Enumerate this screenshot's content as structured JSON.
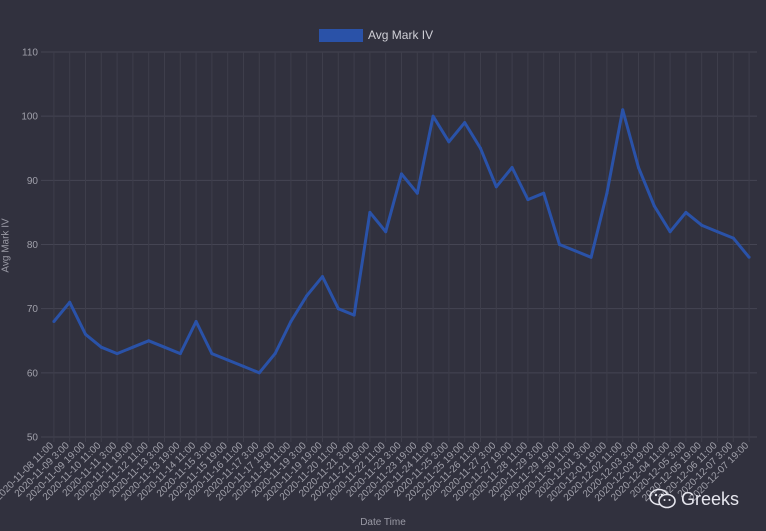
{
  "chart_data": {
    "type": "line",
    "title": "",
    "xlabel": "Date Time",
    "ylabel": "Avg Mark IV",
    "ylim": [
      50,
      110
    ],
    "yticks": [
      "50",
      "60",
      "70",
      "80",
      "90",
      "100",
      "110"
    ],
    "grid": true,
    "legend": "top-center",
    "xtick_labels": [
      "2020-11-08 11:00",
      "2020-11-09 3:00",
      "2020-11-09 19:00",
      "2020-11-10 11:00",
      "2020-11-11 3:00",
      "2020-11-11 19:00",
      "2020-11-12 11:00",
      "2020-11-13 3:00",
      "2020-11-13 19:00",
      "2020-11-14 11:00",
      "2020-11-15 3:00",
      "2020-11-15 19:00",
      "2020-11-16 11:00",
      "2020-11-17 3:00",
      "2020-11-17 19:00",
      "2020-11-18 11:00",
      "2020-11-19 3:00",
      "2020-11-19 19:00",
      "2020-11-20 11:00",
      "2020-11-21 3:00",
      "2020-11-21 19:00",
      "2020-11-22 11:00",
      "2020-11-23 3:00",
      "2020-11-23 19:00",
      "2020-11-24 11:00",
      "2020-11-25 3:00",
      "2020-11-25 19:00",
      "2020-11-26 11:00",
      "2020-11-27 3:00",
      "2020-11-27 19:00",
      "2020-11-28 11:00",
      "2020-11-29 3:00",
      "2020-11-29 19:00",
      "2020-11-30 11:00",
      "2020-12-01 3:00",
      "2020-12-01 19:00",
      "2020-12-02 11:00",
      "2020-12-03 3:00",
      "2020-12-03 19:00",
      "2020-12-04 11:00",
      "2020-12-05 3:00",
      "2020-12-05 19:00",
      "2020-12-06 11:00",
      "2020-12-07 3:00",
      "2020-12-07 19:00"
    ],
    "series": [
      {
        "name": "Avg Mark IV",
        "color": "#2a52a8",
        "x": [
          "2020-11-08 11:00",
          "2020-11-09 3:00",
          "2020-11-09 19:00",
          "2020-11-10 11:00",
          "2020-11-11 3:00",
          "2020-11-11 19:00",
          "2020-11-12 11:00",
          "2020-11-13 3:00",
          "2020-11-13 19:00",
          "2020-11-14 11:00",
          "2020-11-15 3:00",
          "2020-11-15 19:00",
          "2020-11-16 11:00",
          "2020-11-17 3:00",
          "2020-11-17 19:00",
          "2020-11-18 11:00",
          "2020-11-19 3:00",
          "2020-11-19 19:00",
          "2020-11-20 11:00",
          "2020-11-21 3:00",
          "2020-11-21 19:00",
          "2020-11-22 11:00",
          "2020-11-23 3:00",
          "2020-11-23 19:00",
          "2020-11-24 11:00",
          "2020-11-25 3:00",
          "2020-11-25 19:00",
          "2020-11-26 11:00",
          "2020-11-27 3:00",
          "2020-11-27 19:00",
          "2020-11-28 11:00",
          "2020-11-29 3:00",
          "2020-11-29 19:00",
          "2020-11-30 11:00",
          "2020-12-01 3:00",
          "2020-12-01 19:00",
          "2020-12-02 11:00",
          "2020-12-03 3:00",
          "2020-12-03 19:00",
          "2020-12-04 11:00",
          "2020-12-05 3:00",
          "2020-12-05 19:00",
          "2020-12-06 11:00",
          "2020-12-07 3:00",
          "2020-12-07 19:00"
        ],
        "values": [
          68,
          71,
          66,
          64,
          63,
          64,
          65,
          64,
          63,
          68,
          63,
          62,
          61,
          60,
          63,
          68,
          72,
          75,
          70,
          69,
          85,
          82,
          91,
          88,
          100,
          96,
          99,
          95,
          89,
          92,
          87,
          88,
          80,
          79,
          78,
          88,
          101,
          92,
          86,
          82,
          85,
          83,
          82,
          81,
          78
        ]
      }
    ]
  },
  "watermark": {
    "text": "Greeks",
    "icon": "wechat-icon"
  }
}
